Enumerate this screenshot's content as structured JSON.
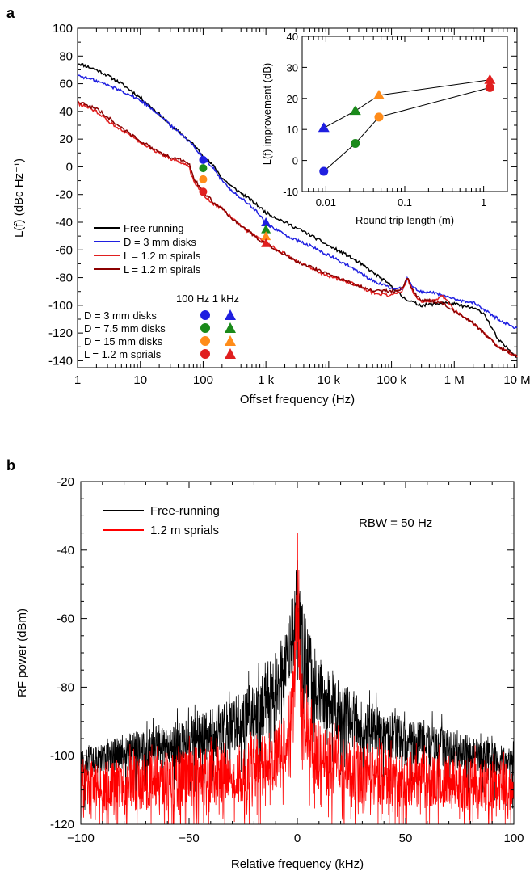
{
  "panels": {
    "a": "a",
    "b": "b"
  },
  "chart_data": [
    {
      "id": "main-phase-noise",
      "type": "line",
      "xlabel": "Offset frequency (Hz)",
      "ylabel": "L(f) (dBc Hz⁻¹)",
      "x_scale": "log",
      "xlim": [
        1,
        10000000
      ],
      "ylim": [
        -145,
        100
      ],
      "xticks": [
        1,
        10,
        100,
        1000,
        10000,
        100000,
        1000000,
        10000000
      ],
      "xtick_labels": [
        "1",
        "10",
        "100",
        "1 k",
        "10 k",
        "100 k",
        "1 M",
        "10 M"
      ],
      "yticks": [
        -140,
        -120,
        -100,
        -80,
        -60,
        -40,
        -20,
        0,
        20,
        40,
        60,
        80,
        100
      ],
      "legend": {
        "placement": "bottom-left",
        "entries": [
          {
            "label": "Free-running",
            "color": "#000000"
          },
          {
            "label": "D = 3 mm disks",
            "color": "#1f1fe0"
          },
          {
            "label": "L = 1.2 m spirals",
            "color": "#e01f1f"
          },
          {
            "label": "L = 1.2 m spirals",
            "color": "#8b0000"
          }
        ]
      },
      "series": [
        {
          "name": "Free-running",
          "color": "#000000",
          "x": [
            1,
            2,
            3,
            5,
            10,
            20,
            30,
            50,
            70,
            100,
            150,
            200,
            300,
            500,
            700,
            1000,
            2000,
            3000,
            5000,
            10000,
            20000,
            30000,
            50000,
            100000,
            150000,
            200000,
            250000,
            300000,
            500000,
            700000,
            1000000,
            1500000,
            2000000,
            3000000,
            5000000,
            10000000
          ],
          "y": [
            75,
            70,
            66,
            60,
            50,
            38,
            30,
            22,
            16,
            8,
            0,
            -8,
            -15,
            -22,
            -27,
            -33,
            -40,
            -44,
            -49,
            -57,
            -64,
            -69,
            -76,
            -86,
            -94,
            -97,
            -99,
            -100,
            -99,
            -98,
            -99,
            -101,
            -102,
            -106,
            -125,
            -137
          ]
        },
        {
          "name": "D = 3 mm disks",
          "color": "#1f1fe0",
          "x": [
            1,
            2,
            3,
            5,
            10,
            20,
            30,
            50,
            70,
            100,
            150,
            200,
            300,
            500,
            700,
            1000,
            2000,
            3000,
            5000,
            10000,
            20000,
            30000,
            50000,
            100000,
            150000,
            180000,
            200000,
            250000,
            300000,
            500000,
            700000,
            1000000,
            2000000,
            3000000,
            5000000,
            10000000
          ],
          "y": [
            66,
            62,
            59,
            55,
            48,
            38,
            30,
            22,
            15,
            7,
            -2,
            -10,
            -18,
            -26,
            -32,
            -41,
            -49,
            -53,
            -57,
            -64,
            -71,
            -76,
            -82,
            -88,
            -88,
            -80,
            -84,
            -89,
            -90,
            -91,
            -93,
            -96,
            -98,
            -103,
            -110,
            -117
          ]
        },
        {
          "name": "L = 1.2 m spirals",
          "color": "#e01f1f",
          "x": [
            1,
            2,
            3,
            5,
            10,
            20,
            30,
            40,
            60,
            70,
            100,
            150,
            200,
            300,
            500,
            1000,
            2000,
            3000,
            5000,
            10000,
            20000,
            30000,
            50000,
            100000,
            150000,
            180000,
            200000,
            250000,
            300000,
            500000,
            650000,
            700000,
            800000,
            1000000,
            2000000,
            3000000,
            5000000,
            10000000
          ],
          "y": [
            46,
            40,
            33,
            27,
            18,
            10,
            6,
            4,
            0,
            -10,
            -20,
            -27,
            -30,
            -38,
            -46,
            -55,
            -63,
            -68,
            -73,
            -79,
            -83,
            -86,
            -91,
            -93,
            -89,
            -80,
            -86,
            -95,
            -97,
            -97,
            -93,
            -95,
            -98,
            -104,
            -113,
            -120,
            -130,
            -137
          ]
        },
        {
          "name": "L = 1.2 m spirals",
          "color": "#8b0000",
          "x": [
            1,
            2,
            3,
            5,
            10,
            20,
            30,
            40,
            60,
            70,
            100,
            150,
            200,
            300,
            500,
            1000,
            2000,
            3000,
            5000,
            10000,
            20000,
            30000,
            50000,
            100000,
            150000,
            180000,
            200000,
            250000,
            300000,
            500000,
            700000,
            1000000,
            2000000,
            3000000,
            5000000,
            10000000
          ],
          "y": [
            47,
            42,
            36,
            28,
            19,
            10,
            7,
            6,
            2,
            -8,
            -18,
            -26,
            -30,
            -38,
            -46,
            -56,
            -63,
            -68,
            -72,
            -78,
            -83,
            -86,
            -89,
            -90,
            -88,
            -79,
            -86,
            -93,
            -96,
            -97,
            -99,
            -104,
            -113,
            -120,
            -130,
            -137
          ]
        }
      ],
      "markers_legend": {
        "title": "100 Hz 1 kHz",
        "entries": [
          {
            "label": "D = 3 mm disks",
            "color": "#1f1fe0"
          },
          {
            "label": "D = 7.5 mm disks",
            "color": "#1a8a1a"
          },
          {
            "label": "D = 15 mm disks",
            "color": "#ff8c1a"
          },
          {
            "label": "L = 1.2 m sprials",
            "color": "#e01f1f"
          }
        ]
      },
      "markers": [
        {
          "shape": "circle",
          "x": 100,
          "y": 5,
          "color": "#1f1fe0"
        },
        {
          "shape": "circle",
          "x": 100,
          "y": -1,
          "color": "#1a8a1a"
        },
        {
          "shape": "circle",
          "x": 100,
          "y": -9,
          "color": "#ff8c1a"
        },
        {
          "shape": "circle",
          "x": 100,
          "y": -18,
          "color": "#e01f1f"
        },
        {
          "shape": "triangle",
          "x": 1000,
          "y": -40,
          "color": "#1f1fe0"
        },
        {
          "shape": "triangle",
          "x": 1000,
          "y": -45,
          "color": "#1a8a1a"
        },
        {
          "shape": "triangle",
          "x": 1000,
          "y": -50,
          "color": "#ff8c1a"
        },
        {
          "shape": "triangle",
          "x": 1000,
          "y": -55,
          "color": "#e01f1f"
        }
      ]
    },
    {
      "id": "inset-improvement",
      "type": "line",
      "xlabel": "Round trip length (m)",
      "ylabel": "L(f) improvement (dB)",
      "x_scale": "log",
      "xlim": [
        0.005,
        2
      ],
      "ylim": [
        -10,
        40
      ],
      "xticks": [
        0.01,
        0.1,
        1
      ],
      "xtick_labels": [
        "0.01",
        "0.1",
        "1"
      ],
      "yticks": [
        -10,
        0,
        10,
        20,
        30,
        40
      ],
      "series": [
        {
          "shape": "triangle",
          "x": [
            0.0094,
            0.0236,
            0.047,
            1.2
          ],
          "y": [
            10.5,
            16,
            21,
            26
          ],
          "colors": [
            "#1f1fe0",
            "#1a8a1a",
            "#ff8c1a",
            "#e01f1f"
          ]
        },
        {
          "shape": "circle",
          "x": [
            0.0094,
            0.0236,
            0.047,
            1.2
          ],
          "y": [
            -3.5,
            5.5,
            14,
            23.5
          ],
          "colors": [
            "#1f1fe0",
            "#1a8a1a",
            "#ff8c1a",
            "#e01f1f"
          ]
        }
      ]
    },
    {
      "id": "rf-spectrum",
      "type": "line",
      "xlabel": "Relative frequency (kHz)",
      "ylabel": "RF power (dBm)",
      "xlim": [
        -100,
        100
      ],
      "ylim": [
        -120,
        -20
      ],
      "xticks": [
        -100,
        -50,
        0,
        50,
        100
      ],
      "yticks": [
        -120,
        -100,
        -80,
        -60,
        -40,
        -20
      ],
      "annotation": "RBW = 50 Hz",
      "legend": {
        "placement": "top-left",
        "entries": [
          {
            "label": "Free-running",
            "color": "#000000"
          },
          {
            "label": "1.2 m sprials",
            "color": "#ff0000"
          }
        ]
      },
      "series": [
        {
          "name": "Free-running",
          "color": "#000000",
          "peak_x": 0,
          "peak_y": -43,
          "envelope_x": [
            -100,
            -75,
            -50,
            -40,
            -30,
            -20,
            -15,
            -10,
            -5,
            -2,
            0,
            2,
            5,
            10,
            15,
            20,
            30,
            40,
            50,
            75,
            100
          ],
          "envelope_upper": [
            -98,
            -93,
            -89,
            -86,
            -83,
            -78,
            -75,
            -70,
            -62,
            -54,
            -43,
            -54,
            -62,
            -70,
            -75,
            -78,
            -83,
            -86,
            -89,
            -93,
            -98
          ],
          "envelope_lower": [
            -106,
            -104,
            -102,
            -101,
            -99,
            -96,
            -94,
            -91,
            -85,
            -78,
            -70,
            -78,
            -85,
            -91,
            -94,
            -96,
            -99,
            -101,
            -102,
            -104,
            -106
          ]
        },
        {
          "name": "1.2 m sprials",
          "color": "#ff0000",
          "peak_x": 0,
          "peak_y": -35,
          "envelope_x": [
            -100,
            -75,
            -50,
            -40,
            -30,
            -20,
            -15,
            -10,
            -5,
            -2,
            0,
            2,
            5,
            10,
            15,
            20,
            30,
            40,
            50,
            75,
            100
          ],
          "envelope_upper": [
            -102,
            -100,
            -98,
            -97,
            -96,
            -94,
            -93,
            -90,
            -84,
            -74,
            -35,
            -74,
            -84,
            -90,
            -93,
            -94,
            -96,
            -97,
            -98,
            -100,
            -102
          ],
          "envelope_lower": [
            -116,
            -116,
            -115,
            -115,
            -114,
            -113,
            -112,
            -110,
            -104,
            -95,
            -65,
            -95,
            -104,
            -110,
            -112,
            -113,
            -114,
            -115,
            -115,
            -116,
            -116
          ]
        }
      ]
    }
  ]
}
